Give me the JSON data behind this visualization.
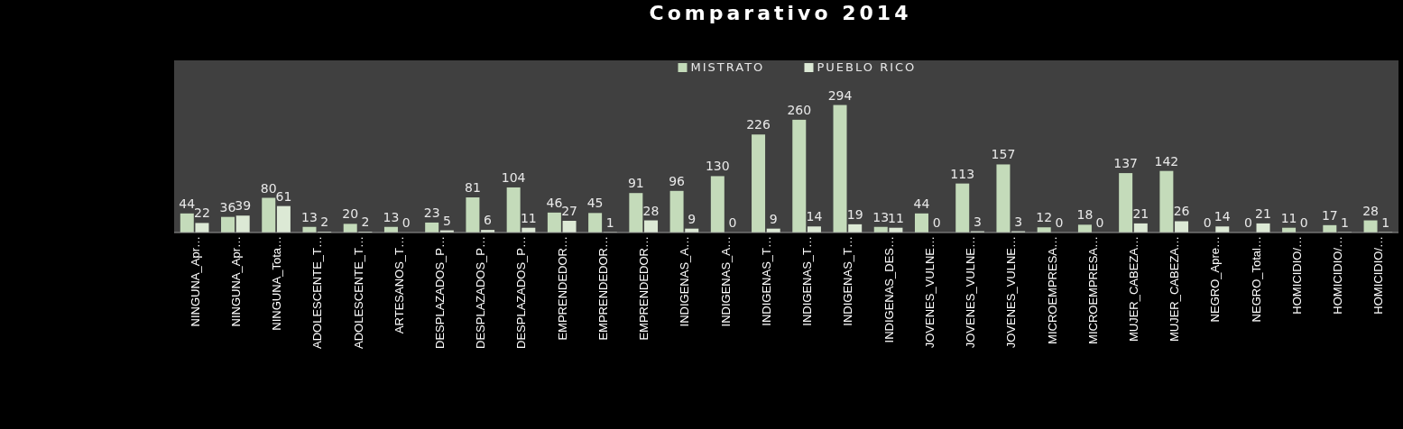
{
  "chart_data": {
    "type": "bar",
    "title": "Comparativo 2014",
    "categories": [
      "NINGUNA_Apr…",
      "NINGUNA_Apr…",
      "NINGUNA_Tota…",
      "ADOLESCENTE_T…",
      "ADOLESCENTE_T…",
      "ARTESANOS_T…",
      "DESPLAZADOS_P…",
      "DESPLAZADOS_P…",
      "DESPLAZADOS_P…",
      "EMPRENDEDOR…",
      "EMPRENDEDOR…",
      "EMPRENDEDOR…",
      "INDIGENAS_A…",
      "INDIGENAS_A…",
      "INDIGENAS_T…",
      "INDIGENAS_T…",
      "INDIGENAS_T…",
      "INDIGENAS_DES…",
      "JOVENES_VULNE…",
      "JOVENES_VULNE…",
      "JOVENES_VULNE…",
      "MICROEMPRESA…",
      "MICROEMPRESA…",
      "MUJER_CABEZA…",
      "MUJER_CABEZA…",
      "NEGRO_Apre…",
      "NEGRO_Total…",
      "HOMICIDIO/…",
      "HOMICIDIO/…",
      "HOMICIDIO/…"
    ],
    "series": [
      {
        "name": "MISTRATO",
        "color": "#c4dbba",
        "values": [
          44,
          36,
          80,
          13,
          20,
          13,
          23,
          81,
          104,
          46,
          45,
          91,
          96,
          130,
          226,
          260,
          294,
          13,
          44,
          113,
          157,
          12,
          18,
          137,
          142,
          0,
          0,
          11,
          17,
          28
        ]
      },
      {
        "name": "PUEBLO RICO",
        "color": "#dce9d5",
        "values": [
          22,
          39,
          61,
          2,
          2,
          0,
          5,
          6,
          11,
          27,
          1,
          28,
          9,
          0,
          9,
          14,
          19,
          11,
          0,
          3,
          3,
          0,
          0,
          21,
          26,
          14,
          21,
          0,
          1,
          1
        ]
      }
    ],
    "data_labels": true,
    "legend": "top",
    "grid": false
  }
}
